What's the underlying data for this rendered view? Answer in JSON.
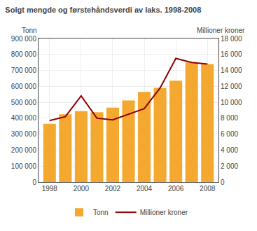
{
  "chart_data": {
    "type": "bar",
    "title": "Solgt mengde og førstehåndsverdi av laks. 1998-2008",
    "x": [
      1998,
      1999,
      2000,
      2001,
      2002,
      2003,
      2004,
      2005,
      2006,
      2007,
      2008
    ],
    "xlim": [
      1997.3,
      2008.7
    ],
    "xticks": [
      1998,
      2000,
      2002,
      2004,
      2006,
      2008
    ],
    "ylabel": "Tonn",
    "y2label": "Millioner kroner",
    "ylim": [
      0,
      900000
    ],
    "yticks": [
      0,
      {
        "value": 100000,
        "label": "100 000"
      },
      {
        "value": 200000,
        "label": "200 000"
      },
      {
        "value": 300000,
        "label": "300 000"
      },
      {
        "value": 400000,
        "label": "400 000"
      },
      {
        "value": 500000,
        "label": "500 000"
      },
      {
        "value": 600000,
        "label": "600 000"
      },
      {
        "value": 700000,
        "label": "700 000"
      },
      {
        "value": 800000,
        "label": "800 000"
      },
      {
        "value": 900000,
        "label": "900 000"
      }
    ],
    "y2lim": [
      0,
      18000
    ],
    "y2ticks": [
      0,
      {
        "value": 2000,
        "label": "2 000"
      },
      {
        "value": 4000,
        "label": "4 000"
      },
      {
        "value": 6000,
        "label": "6 000"
      },
      {
        "value": 8000,
        "label": "8 000"
      },
      {
        "value": 10000,
        "label": "10 000"
      },
      {
        "value": 12000,
        "label": "12 000"
      },
      {
        "value": 14000,
        "label": "14 000"
      },
      {
        "value": 16000,
        "label": "16 000"
      },
      {
        "value": 18000,
        "label": "18 000"
      }
    ],
    "grid": true,
    "legend": "bottom",
    "series": [
      {
        "name": "Tonn",
        "type": "bar",
        "color": "#F5A830",
        "values": [
          365000,
          425000,
          445000,
          438000,
          467000,
          512000,
          565000,
          590000,
          635000,
          750000,
          740000
        ]
      },
      {
        "name": "Millioner kroner",
        "type": "line",
        "axis": "y2",
        "color": "#8B0000",
        "values": [
          7700,
          8200,
          10800,
          8000,
          7800,
          8500,
          9200,
          11800,
          15500,
          15000,
          14800
        ]
      }
    ]
  }
}
